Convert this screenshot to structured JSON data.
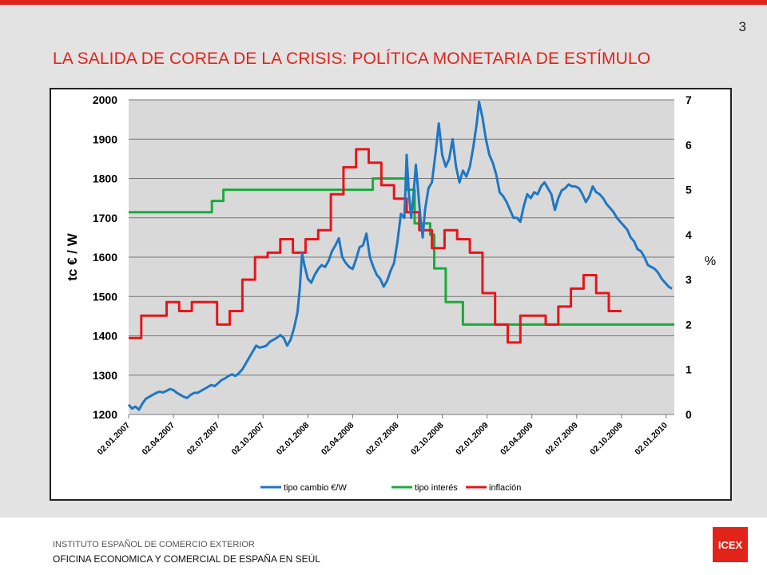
{
  "slide": {
    "number": "3",
    "title": "LA SALIDA DE COREA DE LA CRISIS: POLÍTICA MONETARIA DE ESTÍMULO"
  },
  "footer": {
    "line1": "INSTITUTO   ESPAÑOL DE COMERCIO  EXTERIOR",
    "line2": "OFICINA  ECONOMICA  Y COMERCIAL  DE ESPAÑA EN SEÚL",
    "logo_text": "ICEX"
  },
  "colors": {
    "accent": "#e2231a",
    "exchange_rate": "#1f77c4",
    "interest_rate": "#1aab3c",
    "inflation": "#e8141a",
    "plot_background": "#d9d9d9"
  },
  "chart_data": {
    "type": "line",
    "ylabel": "tc € / W",
    "y2label": "%",
    "ylim": [
      1200,
      2000
    ],
    "y2lim": [
      0,
      7
    ],
    "yticks": [
      "1200",
      "1300",
      "1400",
      "1500",
      "1600",
      "1700",
      "1800",
      "1900",
      "2000"
    ],
    "y2ticks": [
      "0",
      "1",
      "2",
      "3",
      "4",
      "5",
      "6",
      "7"
    ],
    "xticks": [
      "02.01.2007",
      "02.04.2007",
      "02.07.2007",
      "02.10.2007",
      "02.01.2008",
      "02.04.2008",
      "02.07.2008",
      "02.10.2008",
      "02.01.2009",
      "02.04.2009",
      "02.07.2009",
      "02.10.2009",
      "02.01.2010"
    ],
    "grid": true,
    "legend_position": "bottom",
    "x_unit": "months since 02.01.2007",
    "series": [
      {
        "name": "tipo cambio €/W",
        "axis": "left",
        "points": [
          [
            0,
            1225
          ],
          [
            0.3,
            1215
          ],
          [
            0.6,
            1220
          ],
          [
            0.9,
            1212
          ],
          [
            1.2,
            1228
          ],
          [
            1.5,
            1240
          ],
          [
            1.8,
            1245
          ],
          [
            2.1,
            1250
          ],
          [
            2.4,
            1255
          ],
          [
            2.7,
            1258
          ],
          [
            3,
            1256
          ],
          [
            3.3,
            1260
          ],
          [
            3.6,
            1265
          ],
          [
            3.9,
            1262
          ],
          [
            4.2,
            1255
          ],
          [
            4.5,
            1250
          ],
          [
            4.8,
            1245
          ],
          [
            5.1,
            1242
          ],
          [
            5.4,
            1250
          ],
          [
            5.7,
            1255
          ],
          [
            6,
            1255
          ],
          [
            6.3,
            1260
          ],
          [
            6.6,
            1265
          ],
          [
            6.9,
            1270
          ],
          [
            7.2,
            1275
          ],
          [
            7.5,
            1272
          ],
          [
            7.8,
            1280
          ],
          [
            8.1,
            1288
          ],
          [
            8.4,
            1292
          ],
          [
            8.7,
            1298
          ],
          [
            9,
            1302
          ],
          [
            9.3,
            1298
          ],
          [
            9.6,
            1305
          ],
          [
            9.9,
            1315
          ],
          [
            10.2,
            1330
          ],
          [
            10.5,
            1345
          ],
          [
            10.8,
            1360
          ],
          [
            11.1,
            1375
          ],
          [
            11.4,
            1370
          ],
          [
            11.7,
            1372
          ],
          [
            12,
            1375
          ],
          [
            12.3,
            1385
          ],
          [
            12.6,
            1390
          ],
          [
            12.9,
            1395
          ],
          [
            13.2,
            1402
          ],
          [
            13.5,
            1395
          ],
          [
            13.8,
            1375
          ],
          [
            14.1,
            1390
          ],
          [
            14.4,
            1420
          ],
          [
            14.7,
            1460
          ],
          [
            14.9,
            1520
          ],
          [
            15.1,
            1610
          ],
          [
            15.3,
            1580
          ],
          [
            15.6,
            1545
          ],
          [
            15.9,
            1535
          ],
          [
            16.2,
            1555
          ],
          [
            16.5,
            1570
          ],
          [
            16.8,
            1580
          ],
          [
            17.1,
            1575
          ],
          [
            17.4,
            1590
          ],
          [
            17.7,
            1615
          ],
          [
            18,
            1630
          ],
          [
            18.3,
            1648
          ],
          [
            18.6,
            1600
          ],
          [
            18.9,
            1585
          ],
          [
            19.2,
            1575
          ],
          [
            19.5,
            1570
          ],
          [
            19.8,
            1595
          ],
          [
            20.1,
            1625
          ],
          [
            20.4,
            1630
          ],
          [
            20.7,
            1660
          ],
          [
            21,
            1600
          ],
          [
            21.3,
            1575
          ],
          [
            21.6,
            1555
          ],
          [
            21.9,
            1545
          ],
          [
            22.2,
            1525
          ],
          [
            22.5,
            1540
          ],
          [
            22.8,
            1565
          ],
          [
            23.1,
            1585
          ],
          [
            23.4,
            1640
          ],
          [
            23.7,
            1710
          ],
          [
            24,
            1700
          ],
          [
            24.2,
            1860
          ],
          [
            24.4,
            1760
          ],
          [
            24.6,
            1700
          ],
          [
            24.8,
            1760
          ],
          [
            25,
            1835
          ],
          [
            25.2,
            1770
          ],
          [
            25.4,
            1700
          ],
          [
            25.6,
            1650
          ],
          [
            25.8,
            1720
          ],
          [
            26.1,
            1775
          ],
          [
            26.4,
            1790
          ],
          [
            26.7,
            1860
          ],
          [
            27,
            1940
          ],
          [
            27.3,
            1860
          ],
          [
            27.6,
            1830
          ],
          [
            27.9,
            1850
          ],
          [
            28.2,
            1900
          ],
          [
            28.5,
            1830
          ],
          [
            28.8,
            1790
          ],
          [
            29.1,
            1820
          ],
          [
            29.4,
            1805
          ],
          [
            29.7,
            1830
          ],
          [
            30,
            1880
          ],
          [
            30.3,
            1940
          ],
          [
            30.5,
            1995
          ],
          [
            30.8,
            1955
          ],
          [
            31.1,
            1900
          ],
          [
            31.4,
            1860
          ],
          [
            31.7,
            1840
          ],
          [
            32,
            1810
          ],
          [
            32.3,
            1765
          ],
          [
            32.6,
            1755
          ],
          [
            32.9,
            1740
          ],
          [
            33.2,
            1720
          ],
          [
            33.5,
            1700
          ],
          [
            33.8,
            1700
          ],
          [
            34.1,
            1690
          ],
          [
            34.4,
            1730
          ],
          [
            34.7,
            1760
          ],
          [
            35,
            1750
          ],
          [
            35.3,
            1765
          ],
          [
            35.6,
            1760
          ],
          [
            35.9,
            1780
          ],
          [
            36.2,
            1790
          ],
          [
            36.5,
            1775
          ],
          [
            36.8,
            1760
          ],
          [
            37.1,
            1720
          ],
          [
            37.4,
            1750
          ],
          [
            37.7,
            1770
          ],
          [
            38,
            1775
          ],
          [
            38.3,
            1785
          ],
          [
            38.6,
            1780
          ],
          [
            38.9,
            1780
          ],
          [
            39.2,
            1775
          ],
          [
            39.5,
            1760
          ],
          [
            39.8,
            1740
          ],
          [
            40.1,
            1755
          ],
          [
            40.4,
            1780
          ],
          [
            40.7,
            1765
          ],
          [
            41,
            1760
          ],
          [
            41.3,
            1750
          ],
          [
            41.6,
            1735
          ],
          [
            41.9,
            1725
          ],
          [
            42.2,
            1715
          ],
          [
            42.5,
            1700
          ],
          [
            42.8,
            1690
          ],
          [
            43.1,
            1680
          ],
          [
            43.4,
            1670
          ],
          [
            43.7,
            1650
          ],
          [
            44,
            1640
          ],
          [
            44.3,
            1620
          ],
          [
            44.6,
            1615
          ],
          [
            44.9,
            1600
          ],
          [
            45.2,
            1580
          ],
          [
            45.5,
            1575
          ],
          [
            45.8,
            1570
          ],
          [
            46.1,
            1560
          ],
          [
            46.4,
            1545
          ],
          [
            46.7,
            1535
          ],
          [
            47,
            1525
          ],
          [
            47.3,
            1520
          ]
        ]
      },
      {
        "name": "tipo interés",
        "axis": "right",
        "steps": [
          [
            0,
            4.5
          ],
          [
            7.25,
            4.5
          ],
          [
            7.25,
            4.75
          ],
          [
            8.25,
            4.75
          ],
          [
            8.25,
            5.0
          ],
          [
            21.25,
            5.0
          ],
          [
            21.25,
            5.25
          ],
          [
            24.25,
            5.25
          ],
          [
            24.25,
            5.0
          ],
          [
            24.9,
            5.0
          ],
          [
            24.9,
            4.25
          ],
          [
            26.25,
            4.25
          ],
          [
            26.25,
            4.0
          ],
          [
            26.6,
            4.0
          ],
          [
            26.6,
            3.25
          ],
          [
            27.6,
            3.25
          ],
          [
            27.6,
            2.5
          ],
          [
            29.1,
            2.5
          ],
          [
            29.1,
            2.0
          ],
          [
            47.5,
            2.0
          ]
        ]
      },
      {
        "name": "inflación",
        "axis": "right",
        "steps": [
          [
            0,
            1.7
          ],
          [
            1.1,
            1.7
          ],
          [
            1.1,
            2.2
          ],
          [
            3.3,
            2.2
          ],
          [
            3.3,
            2.5
          ],
          [
            4.4,
            2.5
          ],
          [
            4.4,
            2.3
          ],
          [
            5.5,
            2.3
          ],
          [
            5.5,
            2.5
          ],
          [
            7.7,
            2.5
          ],
          [
            7.7,
            2.0
          ],
          [
            8.8,
            2.0
          ],
          [
            8.8,
            2.3
          ],
          [
            9.9,
            2.3
          ],
          [
            9.9,
            3.0
          ],
          [
            11.0,
            3.0
          ],
          [
            11.0,
            3.5
          ],
          [
            12.1,
            3.5
          ],
          [
            12.1,
            3.6
          ],
          [
            13.2,
            3.6
          ],
          [
            13.2,
            3.9
          ],
          [
            14.3,
            3.9
          ],
          [
            14.3,
            3.6
          ],
          [
            15.4,
            3.6
          ],
          [
            15.4,
            3.9
          ],
          [
            16.5,
            3.9
          ],
          [
            16.5,
            4.1
          ],
          [
            17.6,
            4.1
          ],
          [
            17.6,
            4.9
          ],
          [
            18.7,
            4.9
          ],
          [
            18.7,
            5.5
          ],
          [
            19.8,
            5.5
          ],
          [
            19.8,
            5.9
          ],
          [
            20.9,
            5.9
          ],
          [
            20.9,
            5.6
          ],
          [
            22.0,
            5.6
          ],
          [
            22.0,
            5.1
          ],
          [
            23.1,
            5.1
          ],
          [
            23.1,
            4.8
          ],
          [
            24.2,
            4.8
          ],
          [
            24.2,
            4.5
          ],
          [
            25.3,
            4.5
          ],
          [
            25.3,
            4.1
          ],
          [
            26.4,
            4.1
          ],
          [
            26.4,
            3.7
          ],
          [
            27.5,
            3.7
          ],
          [
            27.5,
            4.1
          ],
          [
            28.6,
            4.1
          ],
          [
            28.6,
            3.9
          ],
          [
            29.7,
            3.9
          ],
          [
            29.7,
            3.6
          ],
          [
            30.8,
            3.6
          ],
          [
            30.8,
            2.7
          ],
          [
            31.9,
            2.7
          ],
          [
            31.9,
            2.0
          ],
          [
            33.0,
            2.0
          ],
          [
            33.0,
            1.6
          ],
          [
            34.1,
            1.6
          ],
          [
            34.1,
            2.2
          ],
          [
            36.3,
            2.2
          ],
          [
            36.3,
            2.0
          ],
          [
            37.4,
            2.0
          ],
          [
            37.4,
            2.4
          ],
          [
            38.5,
            2.4
          ],
          [
            38.5,
            2.8
          ],
          [
            39.6,
            2.8
          ],
          [
            39.6,
            3.1
          ],
          [
            40.7,
            3.1
          ],
          [
            40.7,
            2.7
          ],
          [
            41.8,
            2.7
          ],
          [
            41.8,
            2.3
          ],
          [
            42.9,
            2.3
          ]
        ]
      }
    ]
  }
}
